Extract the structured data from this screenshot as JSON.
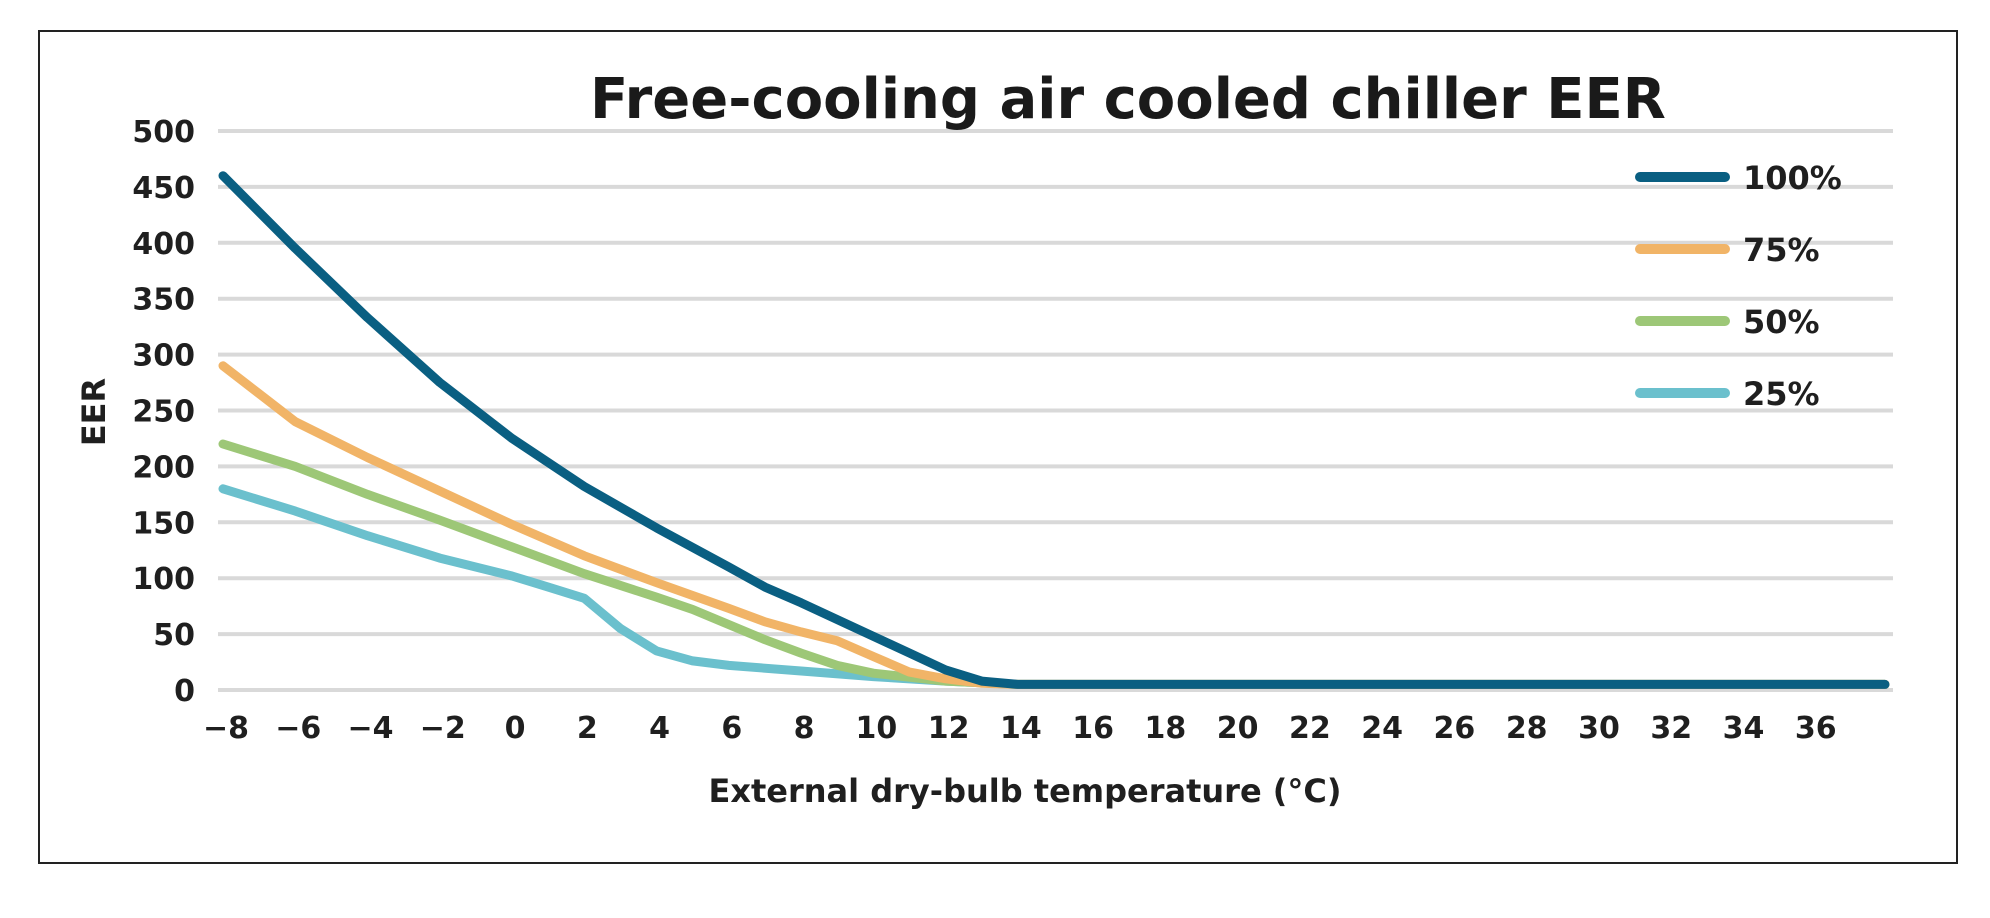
{
  "chart_data": {
    "type": "line",
    "title": "Free-cooling air cooled chiller EER",
    "xlabel": "External dry-bulb temperature (°C)",
    "ylabel": "EER",
    "xlim": [
      -8,
      38
    ],
    "ylim": [
      0,
      500
    ],
    "x_ticks": [
      -8,
      -6,
      -4,
      -2,
      0,
      2,
      4,
      6,
      8,
      10,
      12,
      14,
      16,
      18,
      20,
      22,
      24,
      26,
      28,
      30,
      32,
      34,
      36
    ],
    "x_tick_labels": [
      "−8",
      "−6",
      "−4",
      "−2",
      "0",
      "2",
      "4",
      "6",
      "8",
      "10",
      "12",
      "14",
      "16",
      "18",
      "20",
      "22",
      "24",
      "26",
      "28",
      "30",
      "32",
      "34",
      "36"
    ],
    "y_ticks": [
      0,
      50,
      100,
      150,
      200,
      250,
      300,
      350,
      400,
      450,
      500
    ],
    "y_tick_labels": [
      "0",
      "50",
      "100",
      "150",
      "200",
      "250",
      "300",
      "350",
      "400",
      "450",
      "500"
    ],
    "grid": true,
    "legend_position": "top-right",
    "series": [
      {
        "name": "100%",
        "color": "#0a5f82",
        "points": [
          [
            -8,
            460
          ],
          [
            -6,
            395
          ],
          [
            -4,
            333
          ],
          [
            -2,
            275
          ],
          [
            0,
            225
          ],
          [
            2,
            182
          ],
          [
            4,
            145
          ],
          [
            6,
            110
          ],
          [
            7,
            92
          ],
          [
            8,
            78
          ],
          [
            10,
            48
          ],
          [
            11,
            33
          ],
          [
            12,
            18
          ],
          [
            13,
            8
          ],
          [
            14,
            5
          ],
          [
            38,
            5
          ]
        ]
      },
      {
        "name": "75%",
        "color": "#f1b467",
        "points": [
          [
            -8,
            290
          ],
          [
            -7,
            265
          ],
          [
            -6,
            240
          ],
          [
            -4,
            208
          ],
          [
            -2,
            178
          ],
          [
            0,
            148
          ],
          [
            2,
            120
          ],
          [
            4,
            96
          ],
          [
            6,
            73
          ],
          [
            7,
            61
          ],
          [
            8,
            52
          ],
          [
            9,
            44
          ],
          [
            10,
            30
          ],
          [
            11,
            16
          ],
          [
            12,
            10
          ],
          [
            13,
            6
          ],
          [
            14,
            5
          ],
          [
            38,
            5
          ]
        ]
      },
      {
        "name": "50%",
        "color": "#9dc777",
        "points": [
          [
            -8,
            220
          ],
          [
            -6,
            200
          ],
          [
            -4,
            175
          ],
          [
            -2,
            152
          ],
          [
            0,
            128
          ],
          [
            2,
            104
          ],
          [
            4,
            83
          ],
          [
            5,
            72
          ],
          [
            7,
            45
          ],
          [
            8,
            33
          ],
          [
            9,
            22
          ],
          [
            10,
            15
          ],
          [
            12,
            8
          ],
          [
            14,
            5
          ],
          [
            38,
            5
          ]
        ]
      },
      {
        "name": "25%",
        "color": "#6bc0cd",
        "points": [
          [
            -8,
            180
          ],
          [
            -6,
            160
          ],
          [
            -4,
            138
          ],
          [
            -2,
            118
          ],
          [
            0,
            102
          ],
          [
            1,
            92
          ],
          [
            2,
            82
          ],
          [
            3,
            55
          ],
          [
            4,
            35
          ],
          [
            5,
            26
          ],
          [
            6,
            22
          ],
          [
            8,
            17
          ],
          [
            10,
            12
          ],
          [
            12,
            8
          ],
          [
            14,
            5
          ],
          [
            38,
            5
          ]
        ]
      }
    ]
  }
}
